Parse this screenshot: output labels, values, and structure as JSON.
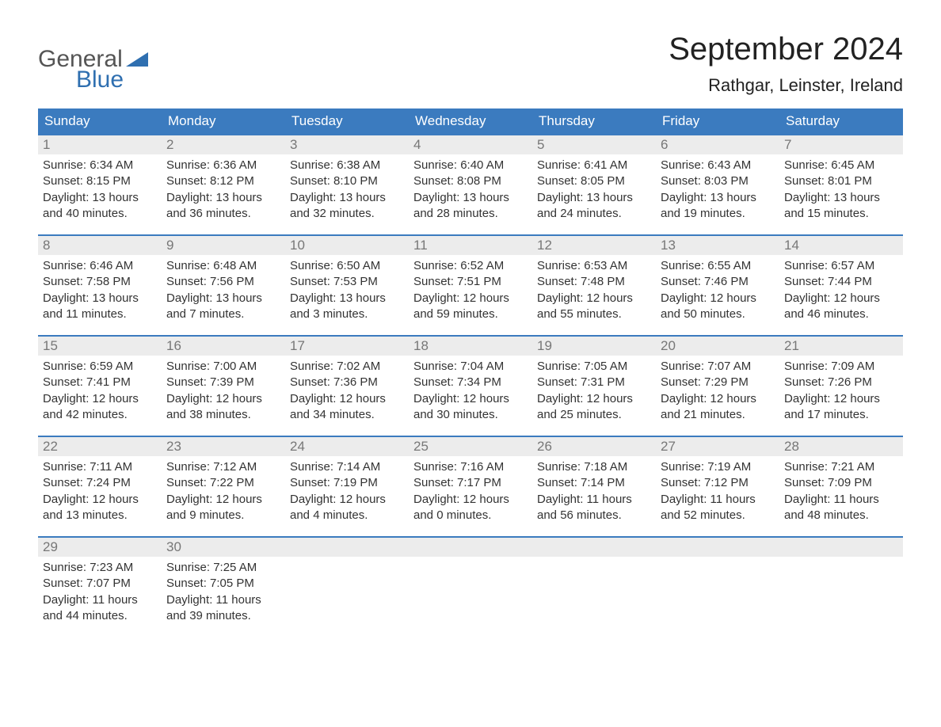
{
  "brand": {
    "line1": "General",
    "line2": "Blue",
    "color_general": "#555555",
    "color_blue": "#2f6fb0"
  },
  "title": "September 2024",
  "location": "Rathgar, Leinster, Ireland",
  "colors": {
    "header_bg": "#3b7bbf",
    "header_text": "#ffffff",
    "daynum_bg": "#ececec",
    "daynum_text": "#777777",
    "border_top": "#3b7bbf",
    "body_text": "#333333",
    "page_bg": "#ffffff"
  },
  "day_headers": [
    "Sunday",
    "Monday",
    "Tuesday",
    "Wednesday",
    "Thursday",
    "Friday",
    "Saturday"
  ],
  "weeks": [
    [
      {
        "day": "1",
        "sunrise": "6:34 AM",
        "sunset": "8:15 PM",
        "daylight": "13 hours and 40 minutes."
      },
      {
        "day": "2",
        "sunrise": "6:36 AM",
        "sunset": "8:12 PM",
        "daylight": "13 hours and 36 minutes."
      },
      {
        "day": "3",
        "sunrise": "6:38 AM",
        "sunset": "8:10 PM",
        "daylight": "13 hours and 32 minutes."
      },
      {
        "day": "4",
        "sunrise": "6:40 AM",
        "sunset": "8:08 PM",
        "daylight": "13 hours and 28 minutes."
      },
      {
        "day": "5",
        "sunrise": "6:41 AM",
        "sunset": "8:05 PM",
        "daylight": "13 hours and 24 minutes."
      },
      {
        "day": "6",
        "sunrise": "6:43 AM",
        "sunset": "8:03 PM",
        "daylight": "13 hours and 19 minutes."
      },
      {
        "day": "7",
        "sunrise": "6:45 AM",
        "sunset": "8:01 PM",
        "daylight": "13 hours and 15 minutes."
      }
    ],
    [
      {
        "day": "8",
        "sunrise": "6:46 AM",
        "sunset": "7:58 PM",
        "daylight": "13 hours and 11 minutes."
      },
      {
        "day": "9",
        "sunrise": "6:48 AM",
        "sunset": "7:56 PM",
        "daylight": "13 hours and 7 minutes."
      },
      {
        "day": "10",
        "sunrise": "6:50 AM",
        "sunset": "7:53 PM",
        "daylight": "13 hours and 3 minutes."
      },
      {
        "day": "11",
        "sunrise": "6:52 AM",
        "sunset": "7:51 PM",
        "daylight": "12 hours and 59 minutes."
      },
      {
        "day": "12",
        "sunrise": "6:53 AM",
        "sunset": "7:48 PM",
        "daylight": "12 hours and 55 minutes."
      },
      {
        "day": "13",
        "sunrise": "6:55 AM",
        "sunset": "7:46 PM",
        "daylight": "12 hours and 50 minutes."
      },
      {
        "day": "14",
        "sunrise": "6:57 AM",
        "sunset": "7:44 PM",
        "daylight": "12 hours and 46 minutes."
      }
    ],
    [
      {
        "day": "15",
        "sunrise": "6:59 AM",
        "sunset": "7:41 PM",
        "daylight": "12 hours and 42 minutes."
      },
      {
        "day": "16",
        "sunrise": "7:00 AM",
        "sunset": "7:39 PM",
        "daylight": "12 hours and 38 minutes."
      },
      {
        "day": "17",
        "sunrise": "7:02 AM",
        "sunset": "7:36 PM",
        "daylight": "12 hours and 34 minutes."
      },
      {
        "day": "18",
        "sunrise": "7:04 AM",
        "sunset": "7:34 PM",
        "daylight": "12 hours and 30 minutes."
      },
      {
        "day": "19",
        "sunrise": "7:05 AM",
        "sunset": "7:31 PM",
        "daylight": "12 hours and 25 minutes."
      },
      {
        "day": "20",
        "sunrise": "7:07 AM",
        "sunset": "7:29 PM",
        "daylight": "12 hours and 21 minutes."
      },
      {
        "day": "21",
        "sunrise": "7:09 AM",
        "sunset": "7:26 PM",
        "daylight": "12 hours and 17 minutes."
      }
    ],
    [
      {
        "day": "22",
        "sunrise": "7:11 AM",
        "sunset": "7:24 PM",
        "daylight": "12 hours and 13 minutes."
      },
      {
        "day": "23",
        "sunrise": "7:12 AM",
        "sunset": "7:22 PM",
        "daylight": "12 hours and 9 minutes."
      },
      {
        "day": "24",
        "sunrise": "7:14 AM",
        "sunset": "7:19 PM",
        "daylight": "12 hours and 4 minutes."
      },
      {
        "day": "25",
        "sunrise": "7:16 AM",
        "sunset": "7:17 PM",
        "daylight": "12 hours and 0 minutes."
      },
      {
        "day": "26",
        "sunrise": "7:18 AM",
        "sunset": "7:14 PM",
        "daylight": "11 hours and 56 minutes."
      },
      {
        "day": "27",
        "sunrise": "7:19 AM",
        "sunset": "7:12 PM",
        "daylight": "11 hours and 52 minutes."
      },
      {
        "day": "28",
        "sunrise": "7:21 AM",
        "sunset": "7:09 PM",
        "daylight": "11 hours and 48 minutes."
      }
    ],
    [
      {
        "day": "29",
        "sunrise": "7:23 AM",
        "sunset": "7:07 PM",
        "daylight": "11 hours and 44 minutes."
      },
      {
        "day": "30",
        "sunrise": "7:25 AM",
        "sunset": "7:05 PM",
        "daylight": "11 hours and 39 minutes."
      },
      {
        "empty": true
      },
      {
        "empty": true
      },
      {
        "empty": true
      },
      {
        "empty": true
      },
      {
        "empty": true
      }
    ]
  ],
  "labels": {
    "sunrise": "Sunrise: ",
    "sunset": "Sunset: ",
    "daylight": "Daylight: "
  }
}
